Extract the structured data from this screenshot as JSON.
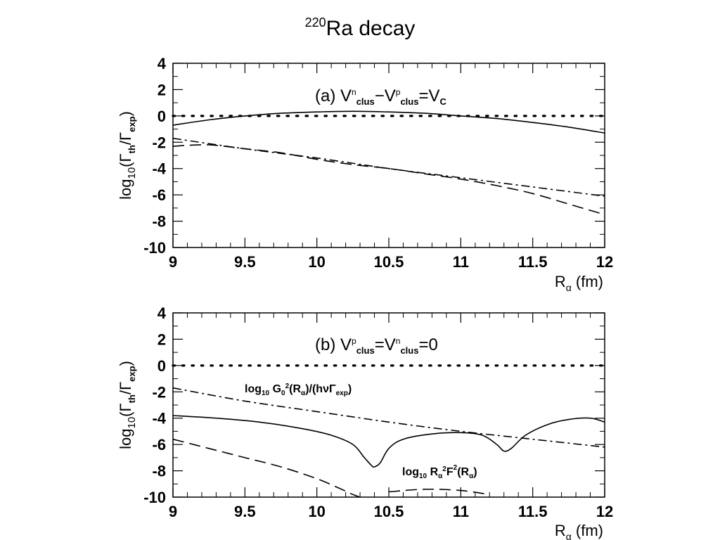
{
  "title": {
    "sup": "220",
    "main": "Ra decay"
  },
  "chart_data": [
    {
      "type": "line",
      "panel_label": "(a) V^n_clus−V^p_clus=V_C",
      "xlabel": "R_α (fm)",
      "ylabel": "log10(Γth/Γexp)",
      "xlim": [
        9,
        12
      ],
      "ylim": [
        -10,
        4
      ],
      "xticks": [
        "9",
        "9.5",
        "10",
        "10.5",
        "11",
        "11.5",
        "12"
      ],
      "yticks": [
        "4",
        "2",
        "0",
        "-2",
        "-4",
        "-6",
        "-8",
        "-10"
      ],
      "grid": false,
      "series": [
        {
          "style": "dotted",
          "x": [
            9,
            12
          ],
          "y": [
            0,
            0
          ]
        },
        {
          "style": "solid",
          "x": [
            9,
            9.25,
            9.5,
            9.75,
            10,
            10.25,
            10.5,
            10.75,
            11,
            11.25,
            11.5,
            11.75,
            12
          ],
          "y": [
            -0.7,
            -0.3,
            0.0,
            0.2,
            0.3,
            0.35,
            0.3,
            0.2,
            0.0,
            -0.2,
            -0.5,
            -0.85,
            -1.3
          ]
        },
        {
          "style": "dash-dot",
          "x": [
            9,
            9.5,
            10,
            10.5,
            11,
            11.5,
            12
          ],
          "y": [
            -1.7,
            -2.5,
            -3.2,
            -4.0,
            -4.7,
            -5.4,
            -6.1
          ]
        },
        {
          "style": "dashed",
          "x": [
            9,
            9.25,
            9.5,
            9.75,
            10,
            10.25,
            10.5,
            10.75,
            11,
            11.25,
            11.5,
            11.75,
            12
          ],
          "y": [
            -2.3,
            -2.2,
            -2.5,
            -2.8,
            -3.3,
            -3.7,
            -4.0,
            -4.4,
            -4.8,
            -5.3,
            -5.9,
            -6.7,
            -7.5
          ]
        }
      ],
      "annotations": []
    },
    {
      "type": "line",
      "panel_label": "(b) V^p_clus=V^n_clus=0",
      "xlabel": "R_α (fm)",
      "ylabel": "log10(Γth/Γexp)",
      "xlim": [
        9,
        12
      ],
      "ylim": [
        -10,
        4
      ],
      "xticks": [
        "9",
        "9.5",
        "10",
        "10.5",
        "11",
        "11.5",
        "12"
      ],
      "yticks": [
        "4",
        "2",
        "0",
        "-2",
        "-4",
        "-6",
        "-8",
        "-10"
      ],
      "grid": false,
      "series": [
        {
          "style": "dotted",
          "x": [
            9,
            12
          ],
          "y": [
            0,
            0
          ]
        },
        {
          "style": "dash-dot",
          "x": [
            9,
            9.5,
            10,
            10.5,
            11,
            11.5,
            12
          ],
          "y": [
            -1.7,
            -2.7,
            -3.5,
            -4.3,
            -5.0,
            -5.6,
            -6.2
          ]
        },
        {
          "style": "solid",
          "x": [
            9,
            9.3,
            9.6,
            9.9,
            10.1,
            10.25,
            10.33,
            10.38,
            10.4,
            10.44,
            10.5,
            10.6,
            10.8,
            11.0,
            11.15,
            11.25,
            11.3,
            11.35,
            11.45,
            11.6,
            11.75,
            11.9,
            12
          ],
          "y": [
            -3.8,
            -4.0,
            -4.3,
            -4.8,
            -5.3,
            -6.0,
            -7.0,
            -7.6,
            -7.7,
            -7.4,
            -6.3,
            -5.6,
            -5.2,
            -5.1,
            -5.3,
            -6.0,
            -6.5,
            -6.3,
            -5.3,
            -4.5,
            -4.1,
            -4.0,
            -4.3
          ]
        },
        {
          "style": "dashed",
          "x": [
            9,
            9.25,
            9.5,
            9.75,
            10,
            10.15,
            10.25,
            10.3
          ],
          "y": [
            -5.6,
            -6.3,
            -7.0,
            -7.7,
            -8.6,
            -9.3,
            -9.8,
            -10.0
          ]
        },
        {
          "style": "dashed",
          "x": [
            10.5,
            10.75,
            11.0,
            11.2
          ],
          "y": [
            -9.6,
            -9.4,
            -9.5,
            -9.8
          ]
        }
      ],
      "annotations": [
        "log10 G0²(Rα)/(hνΓexp)",
        "log10 Rα²F²(Rα)"
      ]
    }
  ]
}
